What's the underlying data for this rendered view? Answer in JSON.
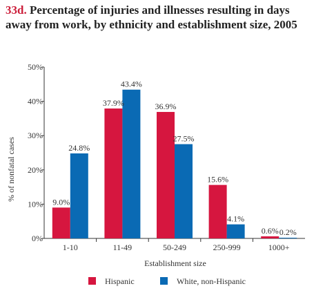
{
  "figure": {
    "number": "33d.",
    "title": "Percentage of injuries and illnesses resulting in days away from work, by ethnicity and establishment size, 2005"
  },
  "chart_data": {
    "type": "bar",
    "title": "Percentage of injuries and illnesses resulting in days away from work, by ethnicity and establishment size, 2005",
    "xlabel": "Establishment size",
    "ylabel": "% of nonfatal cases",
    "ylim": [
      0,
      50
    ],
    "yticks": [
      "0%",
      "10%",
      "20%",
      "30%",
      "40%",
      "50%"
    ],
    "categories": [
      "1-10",
      "11-49",
      "50-249",
      "250-999",
      "1000+"
    ],
    "series": [
      {
        "name": "Hispanic",
        "color": "#d6163f",
        "values": [
          9.0,
          37.9,
          36.9,
          15.6,
          0.6
        ],
        "labels": [
          "9.0%",
          "37.9%",
          "36.9%",
          "15.6%",
          "0.6%"
        ]
      },
      {
        "name": "White, non-Hispanic",
        "color": "#0a6ab4",
        "values": [
          24.8,
          43.4,
          27.5,
          4.1,
          0.2
        ],
        "labels": [
          "24.8%",
          "43.4%",
          "27.5%",
          "4.1%",
          "0.2%"
        ]
      }
    ],
    "grid": false,
    "legend": "bottom"
  }
}
